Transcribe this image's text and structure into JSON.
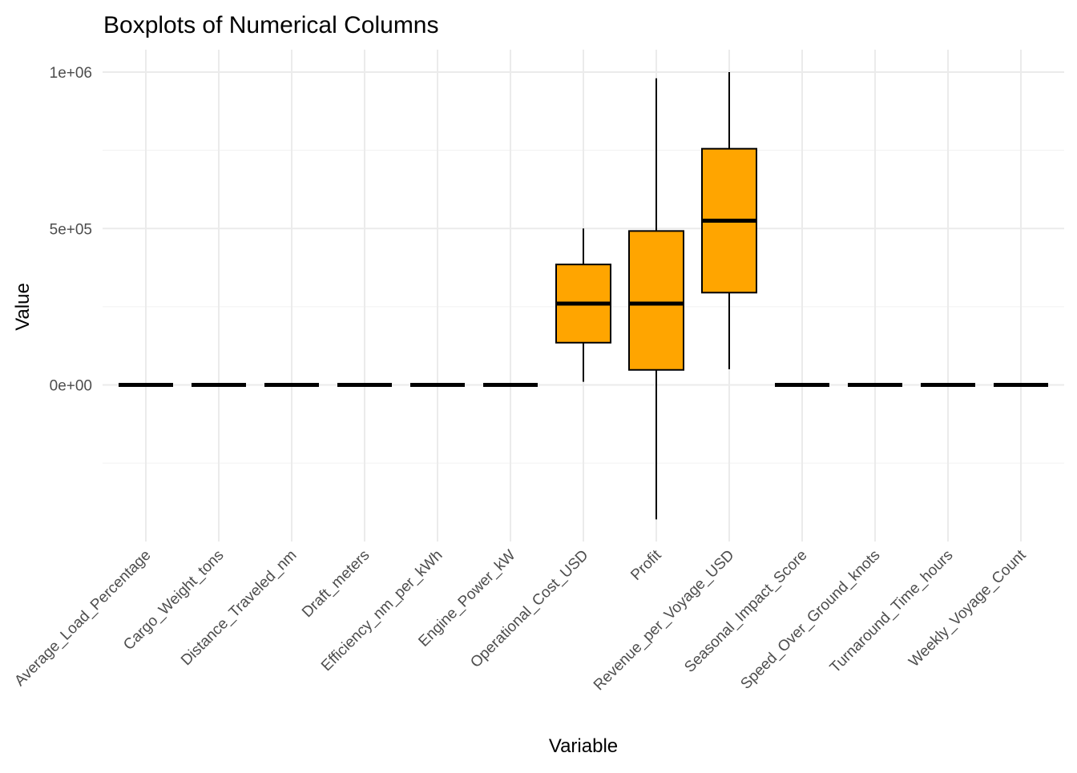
{
  "chart_data": {
    "type": "boxplot",
    "title": "Boxplots of Numerical Columns",
    "xlabel": "Variable",
    "ylabel": "Value",
    "ylim": [
      -500000,
      1000000
    ],
    "y_ticks": [
      {
        "value": 0,
        "label": "0e+00"
      },
      {
        "value": 500000,
        "label": "5e+05"
      },
      {
        "value": 1000000,
        "label": "1e+06"
      }
    ],
    "grid": true,
    "box_fill": "#FFA500",
    "box_stroke": "#000000",
    "categories": [
      "Average_Load_Percentage",
      "Cargo_Weight_tons",
      "Distance_Traveled_nm",
      "Draft_meters",
      "Efficiency_nm_per_kWh",
      "Engine_Power_kW",
      "Operational_Cost_USD",
      "Profit",
      "Revenue_per_Voyage_USD",
      "Seasonal_Impact_Score",
      "Speed_Over_Ground_knots",
      "Turnaround_Time_hours",
      "Weekly_Voyage_Count"
    ],
    "boxes": [
      {
        "min": 0,
        "q1": 0,
        "median": 0,
        "q3": 0,
        "max": 0
      },
      {
        "min": 0,
        "q1": 0,
        "median": 0,
        "q3": 0,
        "max": 0
      },
      {
        "min": 0,
        "q1": 0,
        "median": 0,
        "q3": 0,
        "max": 0
      },
      {
        "min": 0,
        "q1": 0,
        "median": 0,
        "q3": 0,
        "max": 0
      },
      {
        "min": 0,
        "q1": 0,
        "median": 0,
        "q3": 0,
        "max": 0
      },
      {
        "min": 0,
        "q1": 0,
        "median": 0,
        "q3": 0,
        "max": 0
      },
      {
        "min": 10000,
        "q1": 135000,
        "median": 260000,
        "q3": 385000,
        "max": 500000
      },
      {
        "min": -430000,
        "q1": 48000,
        "median": 260000,
        "q3": 492000,
        "max": 980000
      },
      {
        "min": 50000,
        "q1": 295000,
        "median": 525000,
        "q3": 755000,
        "max": 1000000
      },
      {
        "min": 0,
        "q1": 0,
        "median": 0,
        "q3": 0,
        "max": 0
      },
      {
        "min": 0,
        "q1": 0,
        "median": 0,
        "q3": 0,
        "max": 0
      },
      {
        "min": 0,
        "q1": 0,
        "median": 0,
        "q3": 0,
        "max": 0
      },
      {
        "min": 0,
        "q1": 0,
        "median": 0,
        "q3": 0,
        "max": 0
      }
    ]
  }
}
